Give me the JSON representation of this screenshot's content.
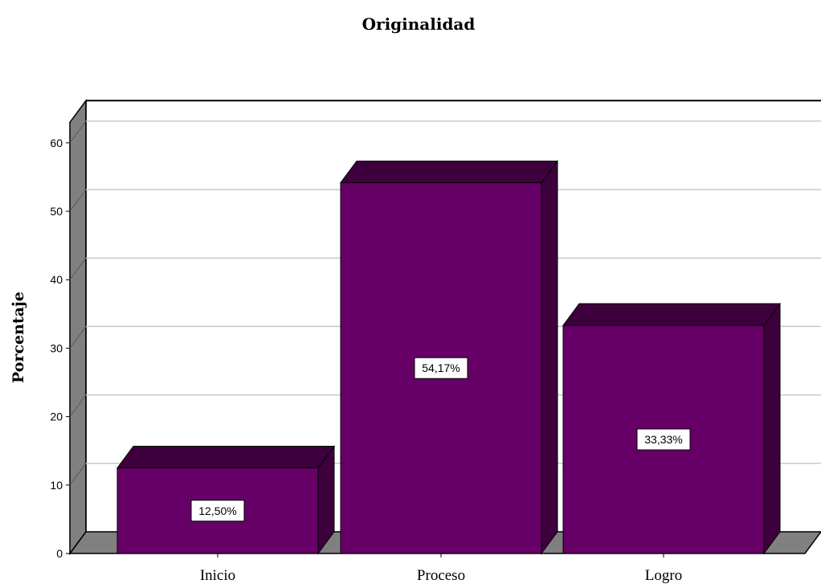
{
  "chart_data": {
    "type": "bar",
    "title": "Originalidad",
    "xlabel": "",
    "ylabel": "Porcentaje",
    "categories": [
      "Inicio",
      "Proceso",
      "Logro"
    ],
    "values": [
      12.5,
      54.17,
      33.33
    ],
    "data_labels": [
      "12,50%",
      "54,17%",
      "33,33%"
    ],
    "ylim": [
      0,
      63
    ],
    "yticks": [
      0,
      10,
      20,
      30,
      40,
      50,
      60
    ],
    "ytick_labels": [
      "0",
      "10",
      "20",
      "30",
      "40",
      "50",
      "60"
    ],
    "grid": true,
    "legend": "none",
    "style": "3d"
  },
  "colors": {
    "bar_front": "#660066",
    "bar_top": "#3d003d",
    "bar_side": "#3d003d",
    "wall_left": "#808080",
    "floor": "#808080",
    "gridline": "#c8c8c8"
  }
}
